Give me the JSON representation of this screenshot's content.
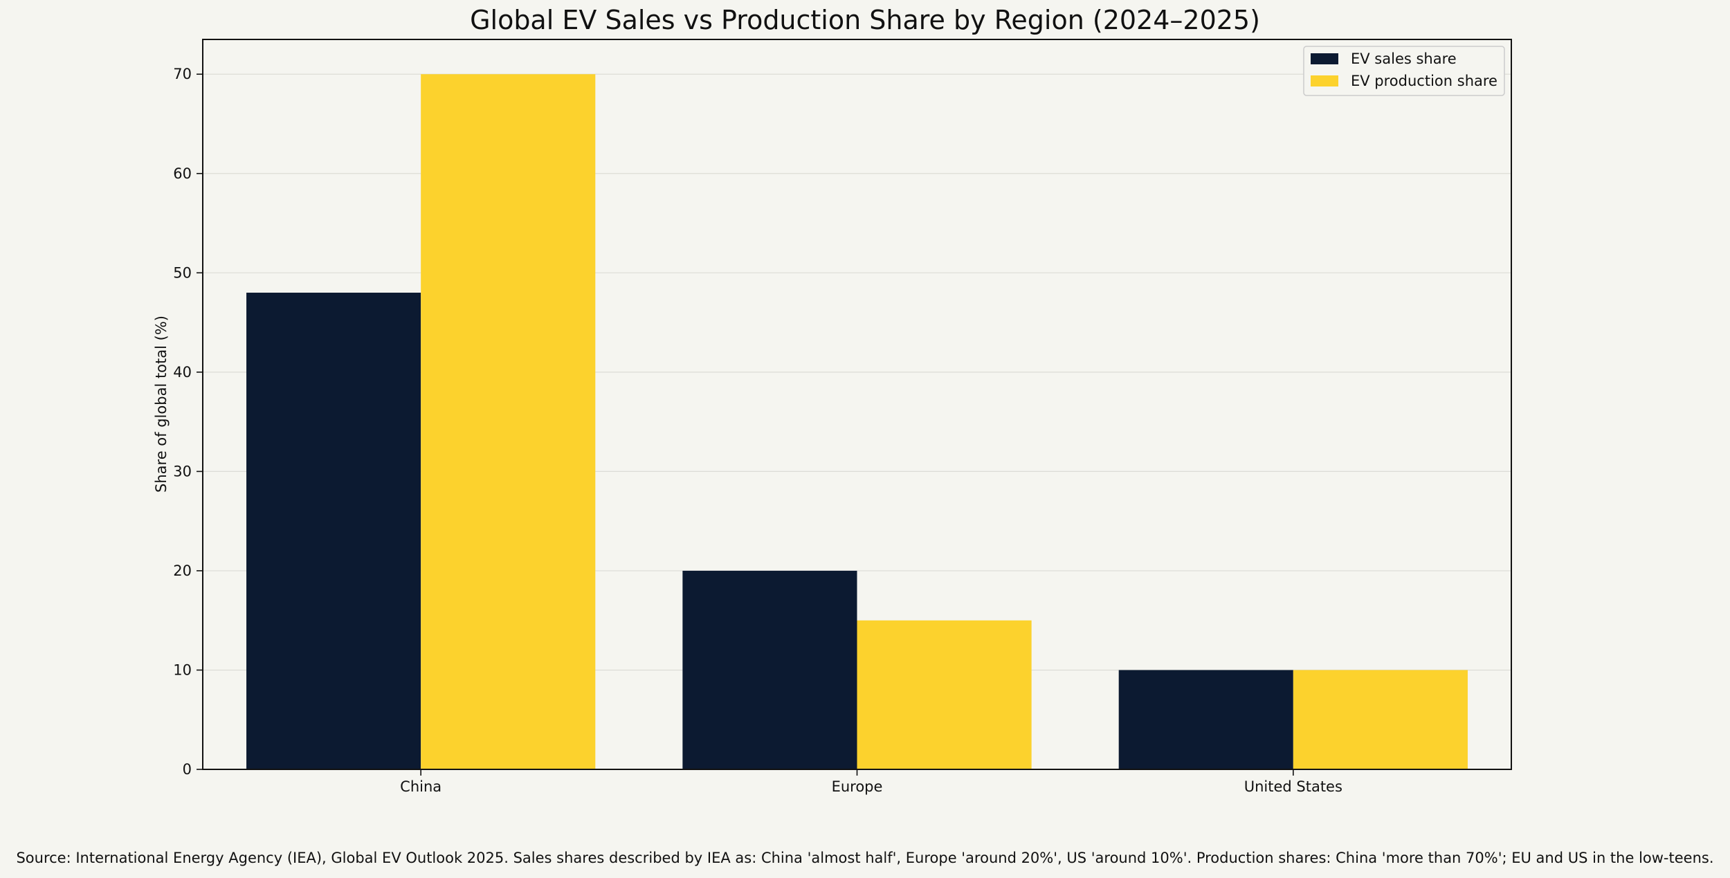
{
  "chart_data": {
    "type": "bar",
    "title": "Global EV Sales vs Production Share by Region (2024–2025)",
    "xlabel": "",
    "ylabel": "Share of global total (%)",
    "categories": [
      "China",
      "Europe",
      "United States"
    ],
    "series": [
      {
        "name": "EV sales share",
        "values": [
          48,
          20,
          10
        ],
        "color": "#0c1a31"
      },
      {
        "name": "EV production share",
        "values": [
          70,
          15,
          10
        ],
        "color": "#fcd22d"
      }
    ],
    "ylim": [
      0,
      73.5
    ],
    "yticks": [
      0,
      10,
      20,
      30,
      40,
      50,
      60,
      70
    ],
    "grid": true,
    "legend_position": "top-right"
  },
  "source_note": "Source: International Energy Agency (IEA), Global EV Outlook 2025. Sales shares described by IEA as: China 'almost half', Europe 'around 20%', US 'around 10%'. Production shares: China 'more than 70%'; EU and US in the low-teens."
}
